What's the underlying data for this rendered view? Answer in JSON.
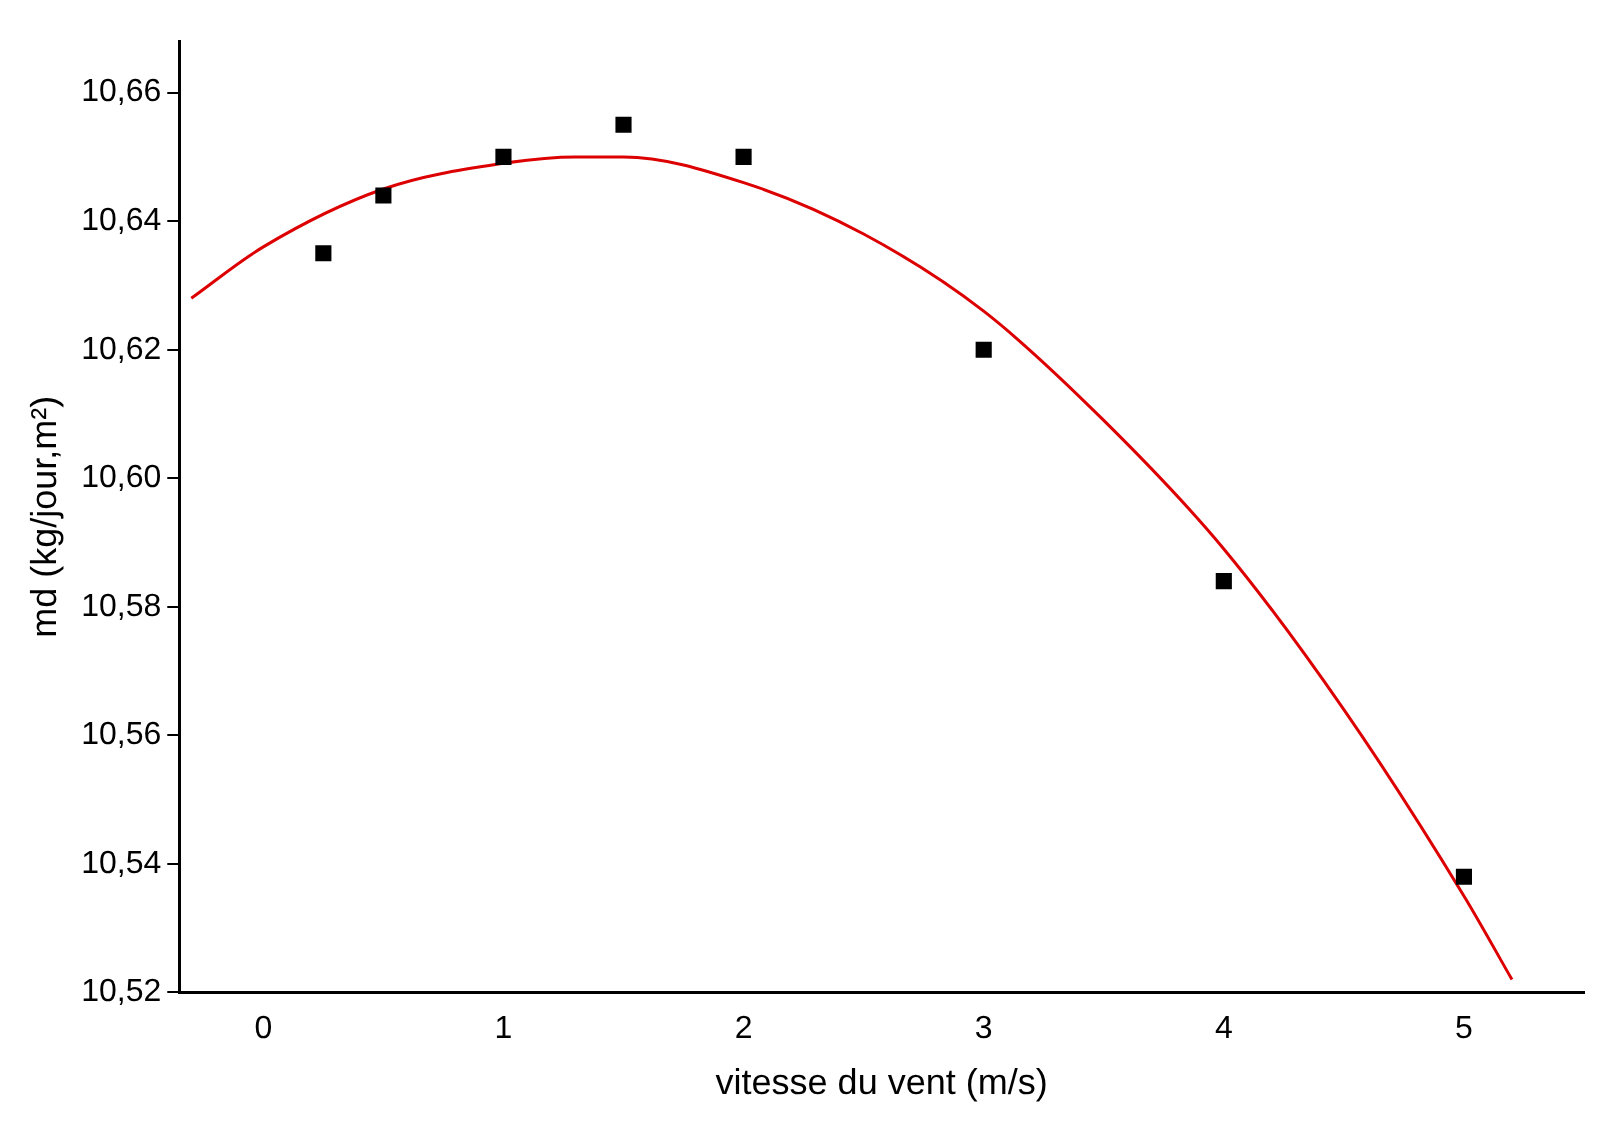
{
  "chart_data": {
    "type": "scatter",
    "xlabel": "vitesse du vent (m/s)",
    "ylabel": "md (kg/jour,m²)",
    "xlim": [
      -0.35,
      5.5
    ],
    "xticks": [
      0,
      1,
      2,
      3,
      4,
      5
    ],
    "ylim": [
      10.52,
      10.668
    ],
    "yticks": [
      {
        "value": 10.52,
        "label": "10,52"
      },
      {
        "value": 10.54,
        "label": "10,54"
      },
      {
        "value": 10.56,
        "label": "10,56"
      },
      {
        "value": 10.58,
        "label": "10,58"
      },
      {
        "value": 10.6,
        "label": "10,60"
      },
      {
        "value": 10.62,
        "label": "10,62"
      },
      {
        "value": 10.64,
        "label": "10,64"
      },
      {
        "value": 10.66,
        "label": "10,66"
      }
    ],
    "grid": false,
    "legend": false,
    "marker": "square",
    "series": [
      {
        "color": "#000000",
        "x": [
          0.25,
          0.5,
          1,
          1.5,
          2,
          3,
          4,
          5
        ],
        "values": [
          10.635,
          10.644,
          10.65,
          10.655,
          10.65,
          10.62,
          10.584,
          10.538
        ]
      },
      {
        "type": "line",
        "color": "#dd0000",
        "marker": "none",
        "line_style": "solid",
        "x": [
          -0.3,
          0,
          0.5,
          1,
          1.3,
          1.5,
          2,
          2.5,
          3,
          3.5,
          4,
          4.5,
          5,
          5.2
        ],
        "values": [
          10.628,
          10.636,
          10.645,
          10.649,
          10.65,
          10.65,
          10.646,
          10.638,
          10.626,
          10.609,
          10.589,
          10.564,
          10.535,
          10.522
        ]
      }
    ]
  }
}
